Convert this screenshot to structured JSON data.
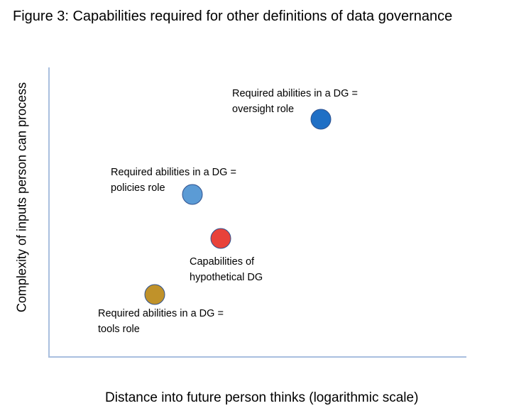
{
  "figure": {
    "title": "Figure 3:  Capabilities required for other definitions of data governance",
    "x_axis_label": "Distance into future person thinks (logarithmic scale)",
    "y_axis_label": "Complexity of inputs person can process"
  },
  "points": [
    {
      "id": "oversight",
      "label_line1": "Required abilities in a DG =",
      "label_line2": "oversight role",
      "color": "#1f6fc5"
    },
    {
      "id": "policies",
      "label_line1": "Required abilities in a DG =",
      "label_line2": "policies role",
      "color": "#5b9bd5"
    },
    {
      "id": "hypothetical",
      "label_line1": "Capabilities of",
      "label_line2": "hypothetical DG",
      "color": "#e8423a"
    },
    {
      "id": "tools",
      "label_line1": "Required abilities in a DG =",
      "label_line2": "tools role",
      "color": "#c0922a"
    }
  ]
}
